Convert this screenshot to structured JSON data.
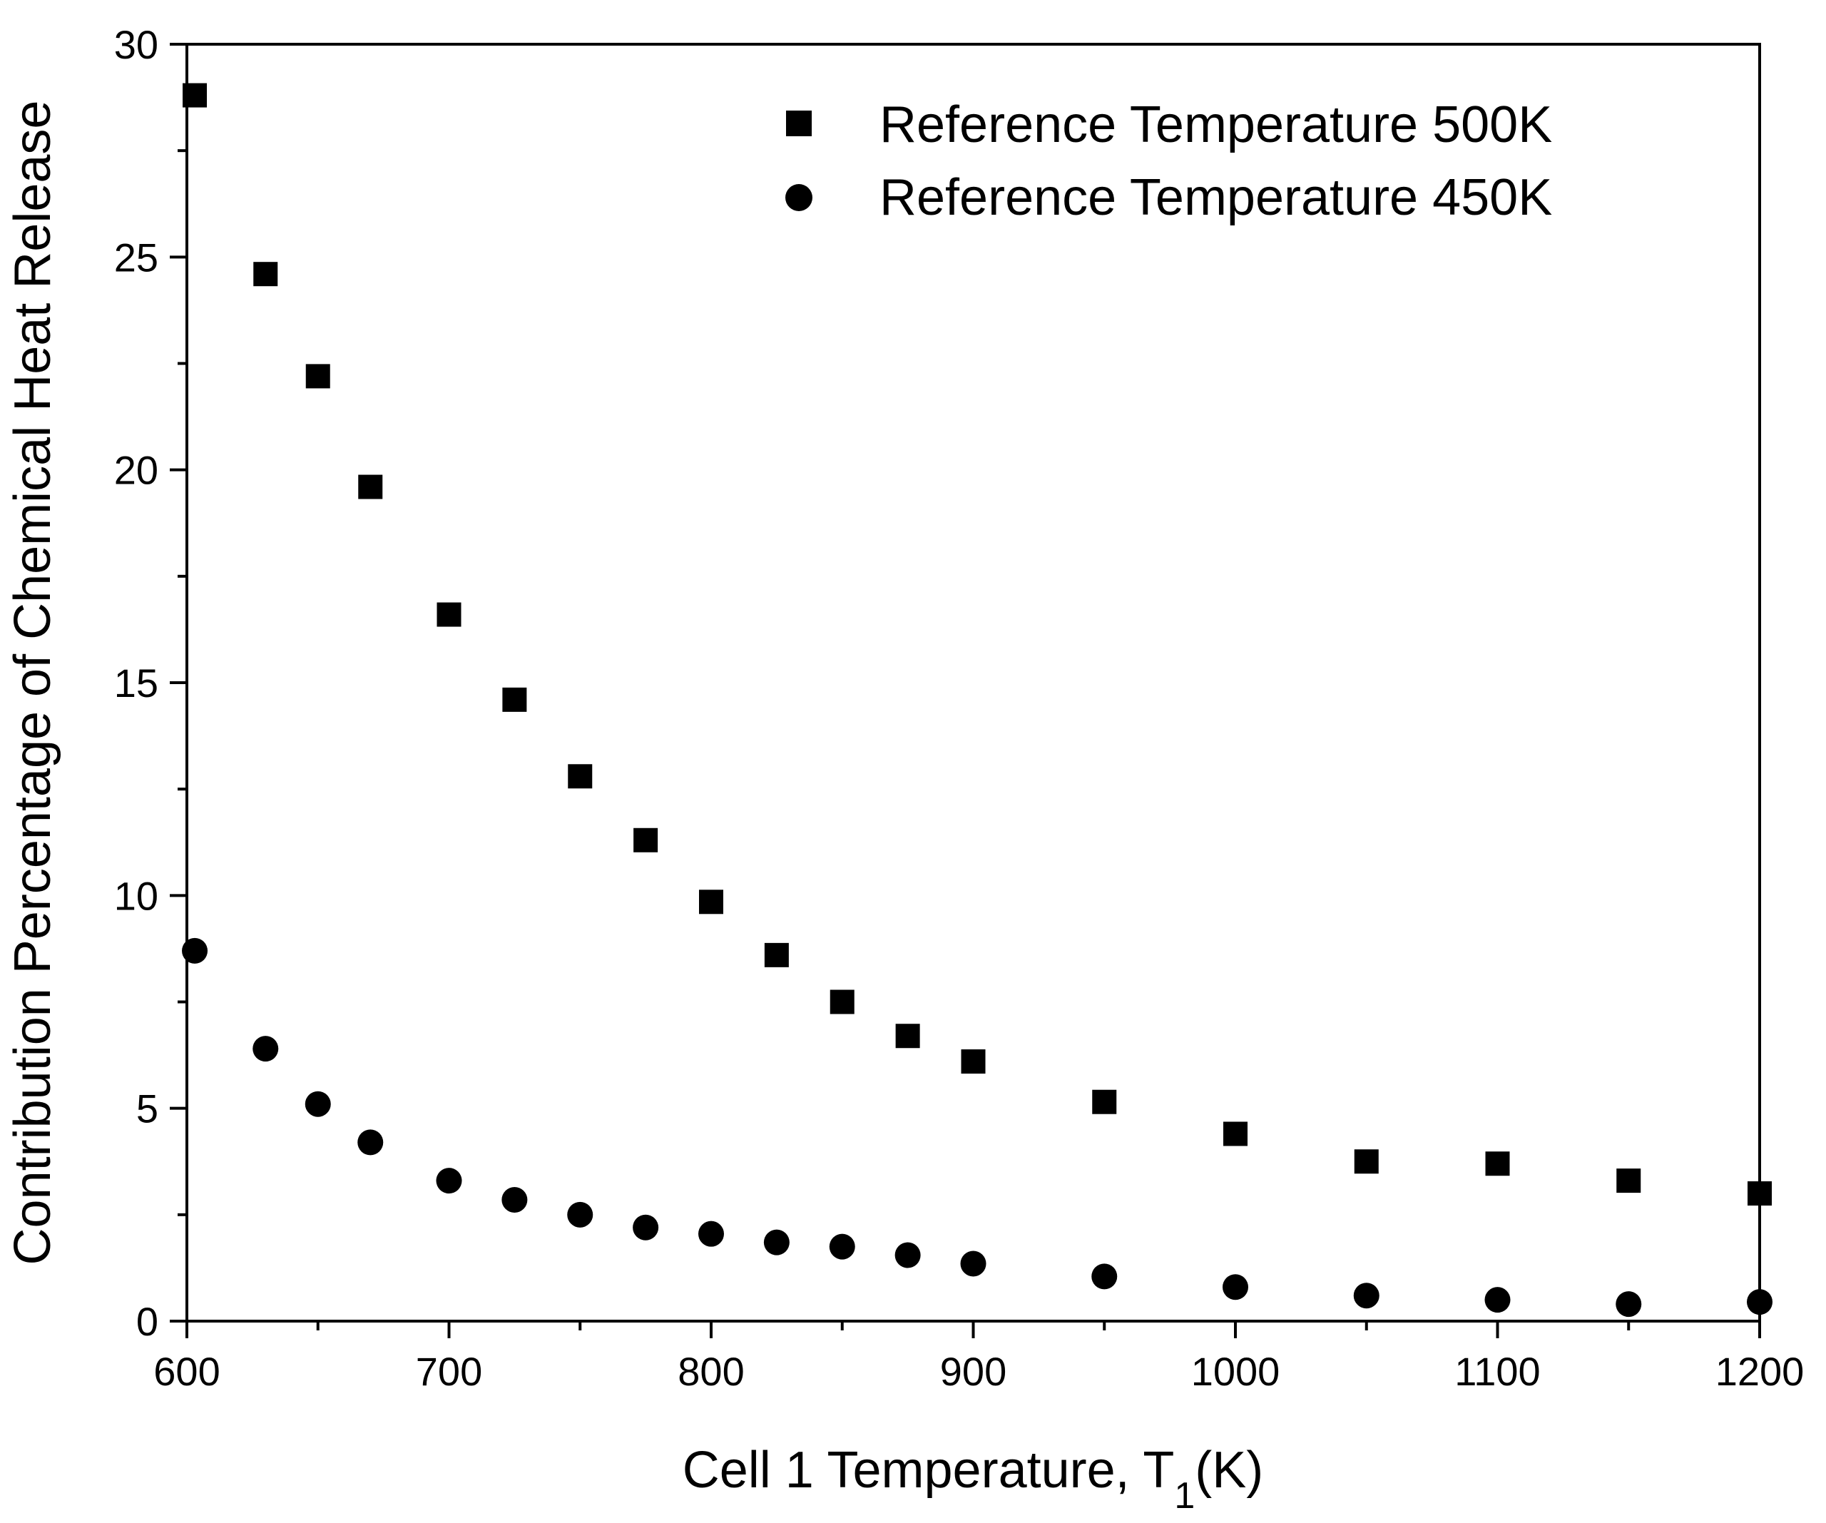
{
  "chart_data": {
    "type": "scatter",
    "title": "",
    "xlabel": {
      "main": "Cell 1 Temperature, T",
      "sub": "1",
      "suffix": "(K)"
    },
    "ylabel": "Contribution Percentage of Chemical Heat Release",
    "xlim": [
      600,
      1200
    ],
    "ylim": [
      0,
      30
    ],
    "xticks": [
      600,
      700,
      800,
      900,
      1000,
      1100,
      1200
    ],
    "yticks": [
      0,
      5,
      10,
      15,
      20,
      25,
      30
    ],
    "grid": false,
    "legend_position": "top-right",
    "series": [
      {
        "name": "Reference Temperature 500K",
        "marker": "square",
        "color": "#000000",
        "x": [
          603,
          630,
          650,
          670,
          700,
          725,
          750,
          775,
          800,
          825,
          850,
          875,
          900,
          950,
          1000,
          1050,
          1100,
          1150,
          1200
        ],
        "y": [
          28.8,
          24.6,
          22.2,
          19.6,
          16.6,
          14.6,
          12.8,
          11.3,
          9.85,
          8.6,
          7.5,
          6.7,
          6.1,
          5.15,
          4.4,
          3.75,
          3.7,
          3.3,
          3.0
        ]
      },
      {
        "name": "Reference Temperature 450K",
        "marker": "circle",
        "color": "#000000",
        "x": [
          603,
          630,
          650,
          670,
          700,
          725,
          750,
          775,
          800,
          825,
          850,
          875,
          900,
          950,
          1000,
          1050,
          1100,
          1150,
          1200
        ],
        "y": [
          8.7,
          6.4,
          5.1,
          4.2,
          3.3,
          2.85,
          2.5,
          2.2,
          2.05,
          1.85,
          1.75,
          1.55,
          1.35,
          1.05,
          0.8,
          0.6,
          0.5,
          0.4,
          0.45
        ]
      }
    ]
  }
}
